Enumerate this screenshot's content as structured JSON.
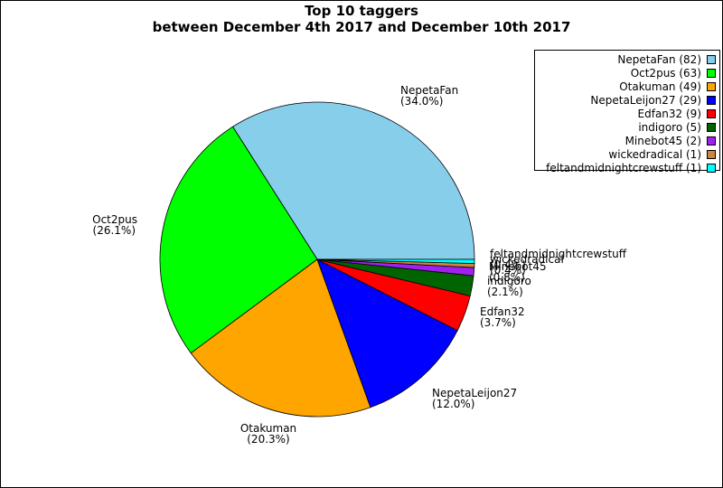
{
  "chart_data": {
    "type": "pie",
    "title": "Top 10 taggers",
    "subtitle": "between December 4th 2017 and December 10th 2017",
    "slices": [
      {
        "name": "NepetaFan",
        "value": 82,
        "percent_label": "(34.0%)",
        "legend_label": "NepetaFan (82)",
        "color": "#87ceeb"
      },
      {
        "name": "Oct2pus",
        "value": 63,
        "percent_label": "(26.1%)",
        "legend_label": "Oct2pus (63)",
        "color": "#00ff00"
      },
      {
        "name": "Otakuman",
        "value": 49,
        "percent_label": "(20.3%)",
        "legend_label": "Otakuman (49)",
        "color": "#ffa500"
      },
      {
        "name": "NepetaLeijon27",
        "value": 29,
        "percent_label": "(12.0%)",
        "legend_label": "NepetaLeijon27 (29)",
        "color": "#0000ff"
      },
      {
        "name": "Edfan32",
        "value": 9,
        "percent_label": "(3.7%)",
        "legend_label": "Edfan32 (9)",
        "color": "#ff0000"
      },
      {
        "name": "indigoro",
        "value": 5,
        "percent_label": "(2.1%)",
        "legend_label": "indigoro (5)",
        "color": "#006400"
      },
      {
        "name": "Minebot45",
        "value": 2,
        "percent_label": "(0.8%)",
        "legend_label": "Minebot45 (2)",
        "color": "#a020f0"
      },
      {
        "name": "wickedradical",
        "value": 1,
        "percent_label": "(0.4%)",
        "legend_label": "wickedradical (1)",
        "color": "#cd853f"
      },
      {
        "name": "feltandmidnightcrewstuff",
        "value": 1,
        "percent_label": "(0.4%)",
        "legend_label": "feltandmidnightcrewstuff (1)",
        "color": "#00ffff"
      }
    ],
    "legend_position": "top-right"
  }
}
